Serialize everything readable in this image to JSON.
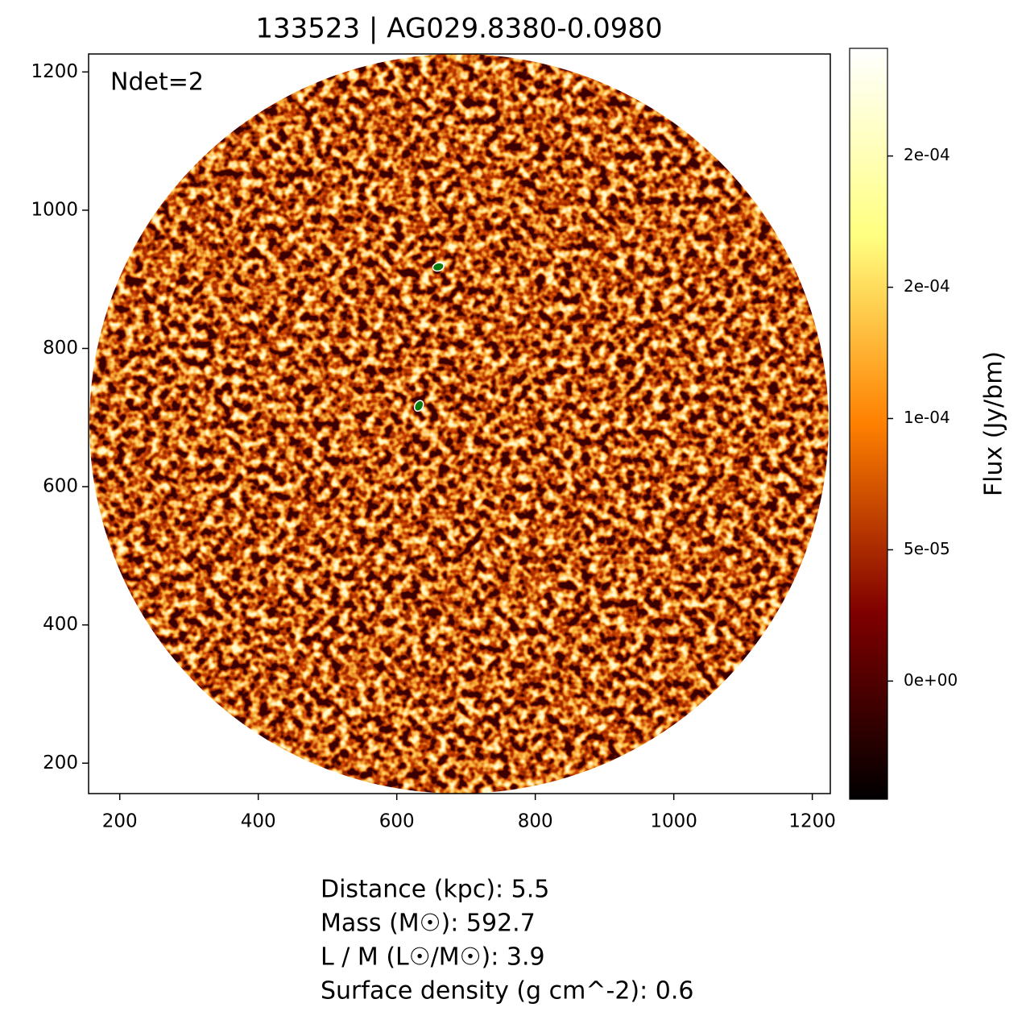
{
  "chart_data": {
    "type": "image",
    "title": "133523 | AG029.8380-0.0980",
    "annotation": "Ndet=2",
    "xlim": [
      155,
      1226
    ],
    "ylim": [
      156,
      1226
    ],
    "xticks": [
      200,
      400,
      600,
      800,
      1000,
      1200
    ],
    "yticks": [
      200,
      400,
      600,
      800,
      1000,
      1200
    ],
    "detections": {
      "x": [
        660,
        632
      ],
      "y": [
        918,
        717
      ],
      "color": "#0a7a0a"
    },
    "colorbar": {
      "label": "Flux (Jy/bm)",
      "lim": [
        -4.5e-05,
        0.000241
      ],
      "ticks": [
        {
          "value": 0,
          "label": "0e+00"
        },
        {
          "value": 5e-05,
          "label": "5e-05"
        },
        {
          "value": 0.0001,
          "label": "1e-04"
        },
        {
          "value": 0.00015,
          "label": "2e-04"
        },
        {
          "value": 0.0002,
          "label": "2e-04"
        }
      ]
    },
    "info": [
      "Distance (kpc): 5.5",
      "Mass (M☉): 592.7",
      "L / M (L☉/M☉): 3.9",
      "Surface density (g cm^-2): 0.6"
    ]
  }
}
